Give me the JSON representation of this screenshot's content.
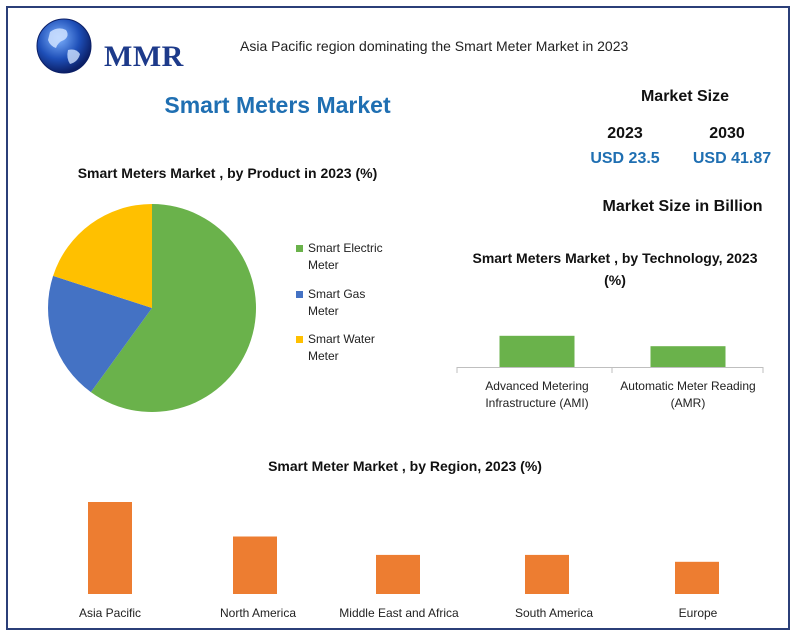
{
  "brand": {
    "logo_text": "MMR"
  },
  "header": {
    "headline": "Asia Pacific region dominating the Smart Meter Market in 2023"
  },
  "main_title": "Smart Meters Market",
  "market_size": {
    "title": "Market Size",
    "year_2023": "2023",
    "year_2030": "2030",
    "value_2023": "USD 23.5",
    "value_2030": "USD 41.87",
    "unit_note": "Market Size in Billion"
  },
  "colors": {
    "green": "#6ab24b",
    "blue": "#4472c4",
    "yellow": "#ffc000",
    "orange": "#ed7d31",
    "title_blue": "#1f6fb2"
  },
  "chart_data": [
    {
      "type": "pie",
      "title": "Smart Meters Market , by Product in 2023 (%)",
      "categories": [
        "Smart Electric Meter",
        "Smart Gas Meter",
        "Smart Water Meter"
      ],
      "values": [
        60,
        20,
        20
      ],
      "colors": [
        "#6ab24b",
        "#4472c4",
        "#ffc000"
      ],
      "legend": [
        "Smart Electric Meter",
        "Smart Gas Meter",
        "Smart Water Meter"
      ],
      "legend_position": "right"
    },
    {
      "type": "bar",
      "title": "Smart Meters Market , by Technology, 2023 (%)",
      "categories": [
        "Advanced Metering Infrastructure (AMI)",
        "Automatic Meter Reading (AMR)"
      ],
      "values": [
        60,
        40
      ],
      "ylim": [
        0,
        100
      ],
      "color": "#6ab24b",
      "grid": false
    },
    {
      "type": "bar",
      "title": "Smart Meter Market , by Region, 2023 (%)",
      "categories": [
        "Asia Pacific",
        "North America",
        "Middle East and Africa",
        "South America",
        "Europe"
      ],
      "values": [
        40,
        25,
        17,
        17,
        14
      ],
      "ylim": [
        0,
        40
      ],
      "color": "#ed7d31",
      "grid": false
    }
  ]
}
